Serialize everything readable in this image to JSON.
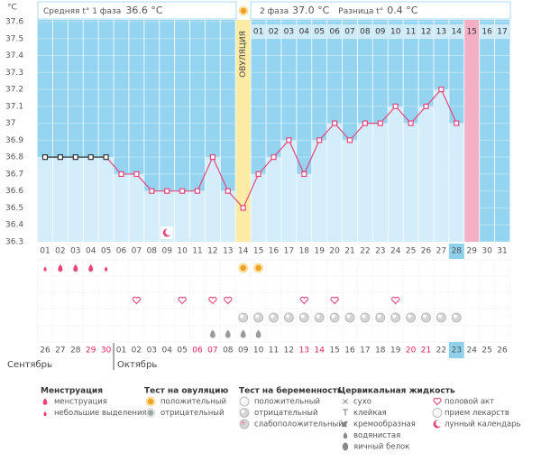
{
  "header": {
    "phase1_label": "Средняя t° 1 фаза",
    "phase1_value": "36.6 °C",
    "phase2_label": "2 фаза",
    "phase2_value": "37.0 °C",
    "diff_label": "Разница t°",
    "diff_value": "0.4 °C"
  },
  "chart_data": {
    "type": "line",
    "y_label": "°C",
    "color": "#e8457c",
    "ylim": [
      36.3,
      37.6
    ],
    "yticks": [
      36.3,
      36.4,
      36.5,
      36.6,
      36.7,
      36.8,
      36.9,
      37,
      37.1,
      37.2,
      37.3,
      37.4,
      37.5,
      37.6
    ],
    "categories": [
      "01",
      "02",
      "03",
      "04",
      "05",
      "06",
      "07",
      "08",
      "09",
      "10",
      "11",
      "12",
      "13",
      "14",
      "15",
      "16",
      "17",
      "18",
      "19",
      "20",
      "21",
      "22",
      "23",
      "24",
      "25",
      "26",
      "27",
      "28",
      "29",
      "30",
      "31"
    ],
    "values": [
      36.8,
      36.8,
      36.8,
      36.8,
      36.8,
      36.7,
      36.7,
      36.6,
      36.6,
      36.6,
      36.6,
      36.8,
      36.6,
      36.5,
      36.7,
      36.8,
      36.9,
      36.7,
      36.9,
      37.0,
      36.9,
      37.0,
      37.0,
      37.1,
      37.0,
      37.1,
      37.2,
      37.0,
      null,
      null,
      null
    ],
    "ovulation_day": "14",
    "ovulation_label": "ОВУЛЯЦИЯ",
    "phase2_days": [
      "01",
      "02",
      "03",
      "04",
      "05",
      "06",
      "07",
      "08",
      "09",
      "10",
      "11",
      "12",
      "13",
      "14",
      "15",
      "16",
      "17"
    ],
    "expected_period_day": "29",
    "current_day": "28",
    "marks": {
      "menstruation_light": [
        "01",
        "05"
      ],
      "menstruation_heavy": [
        "02",
        "03",
        "04"
      ],
      "ovulation_positive": [
        "14",
        "15"
      ],
      "intercourse": [
        "07",
        "10",
        "12",
        "13",
        "18",
        "20",
        "24"
      ],
      "pregnancy_negative": [
        "14",
        "15",
        "16",
        "17",
        "18",
        "19",
        "20",
        "21",
        "22",
        "23",
        "24",
        "25",
        "26",
        "27",
        "28"
      ],
      "egg_white": [
        "12",
        "13",
        "14",
        "15"
      ],
      "lunar": [
        "09"
      ]
    },
    "dates": [
      "26",
      "27",
      "28",
      "29",
      "30",
      "01",
      "02",
      "03",
      "04",
      "05",
      "06",
      "07",
      "08",
      "09",
      "10",
      "11",
      "12",
      "13",
      "14",
      "15",
      "16",
      "17",
      "18",
      "19",
      "20",
      "21",
      "22",
      "23",
      "24",
      "25",
      "26"
    ],
    "red_dates": [
      "29",
      "30",
      "06",
      "07",
      "13",
      "14",
      "20",
      "21"
    ],
    "months": [
      "Сентябрь",
      "Октябрь"
    ]
  },
  "legend": {
    "groups": [
      {
        "title": "Менструация",
        "items": [
          "менструация",
          "небольшие выделения"
        ]
      },
      {
        "title": "Тест на овуляцию",
        "items": [
          "положительный",
          "отрицательный"
        ]
      },
      {
        "title": "Тест на беременность",
        "items": [
          "положительный",
          "отрицательный",
          "слабоположительный"
        ]
      },
      {
        "title": "Цервикальная жидкость",
        "items": [
          "сухо",
          "клейкая",
          "кремообразная",
          "водянистая",
          "яичный белок"
        ]
      },
      {
        "items": [
          "половой акт",
          "прием лекарств",
          "лунный календарь"
        ]
      }
    ]
  }
}
